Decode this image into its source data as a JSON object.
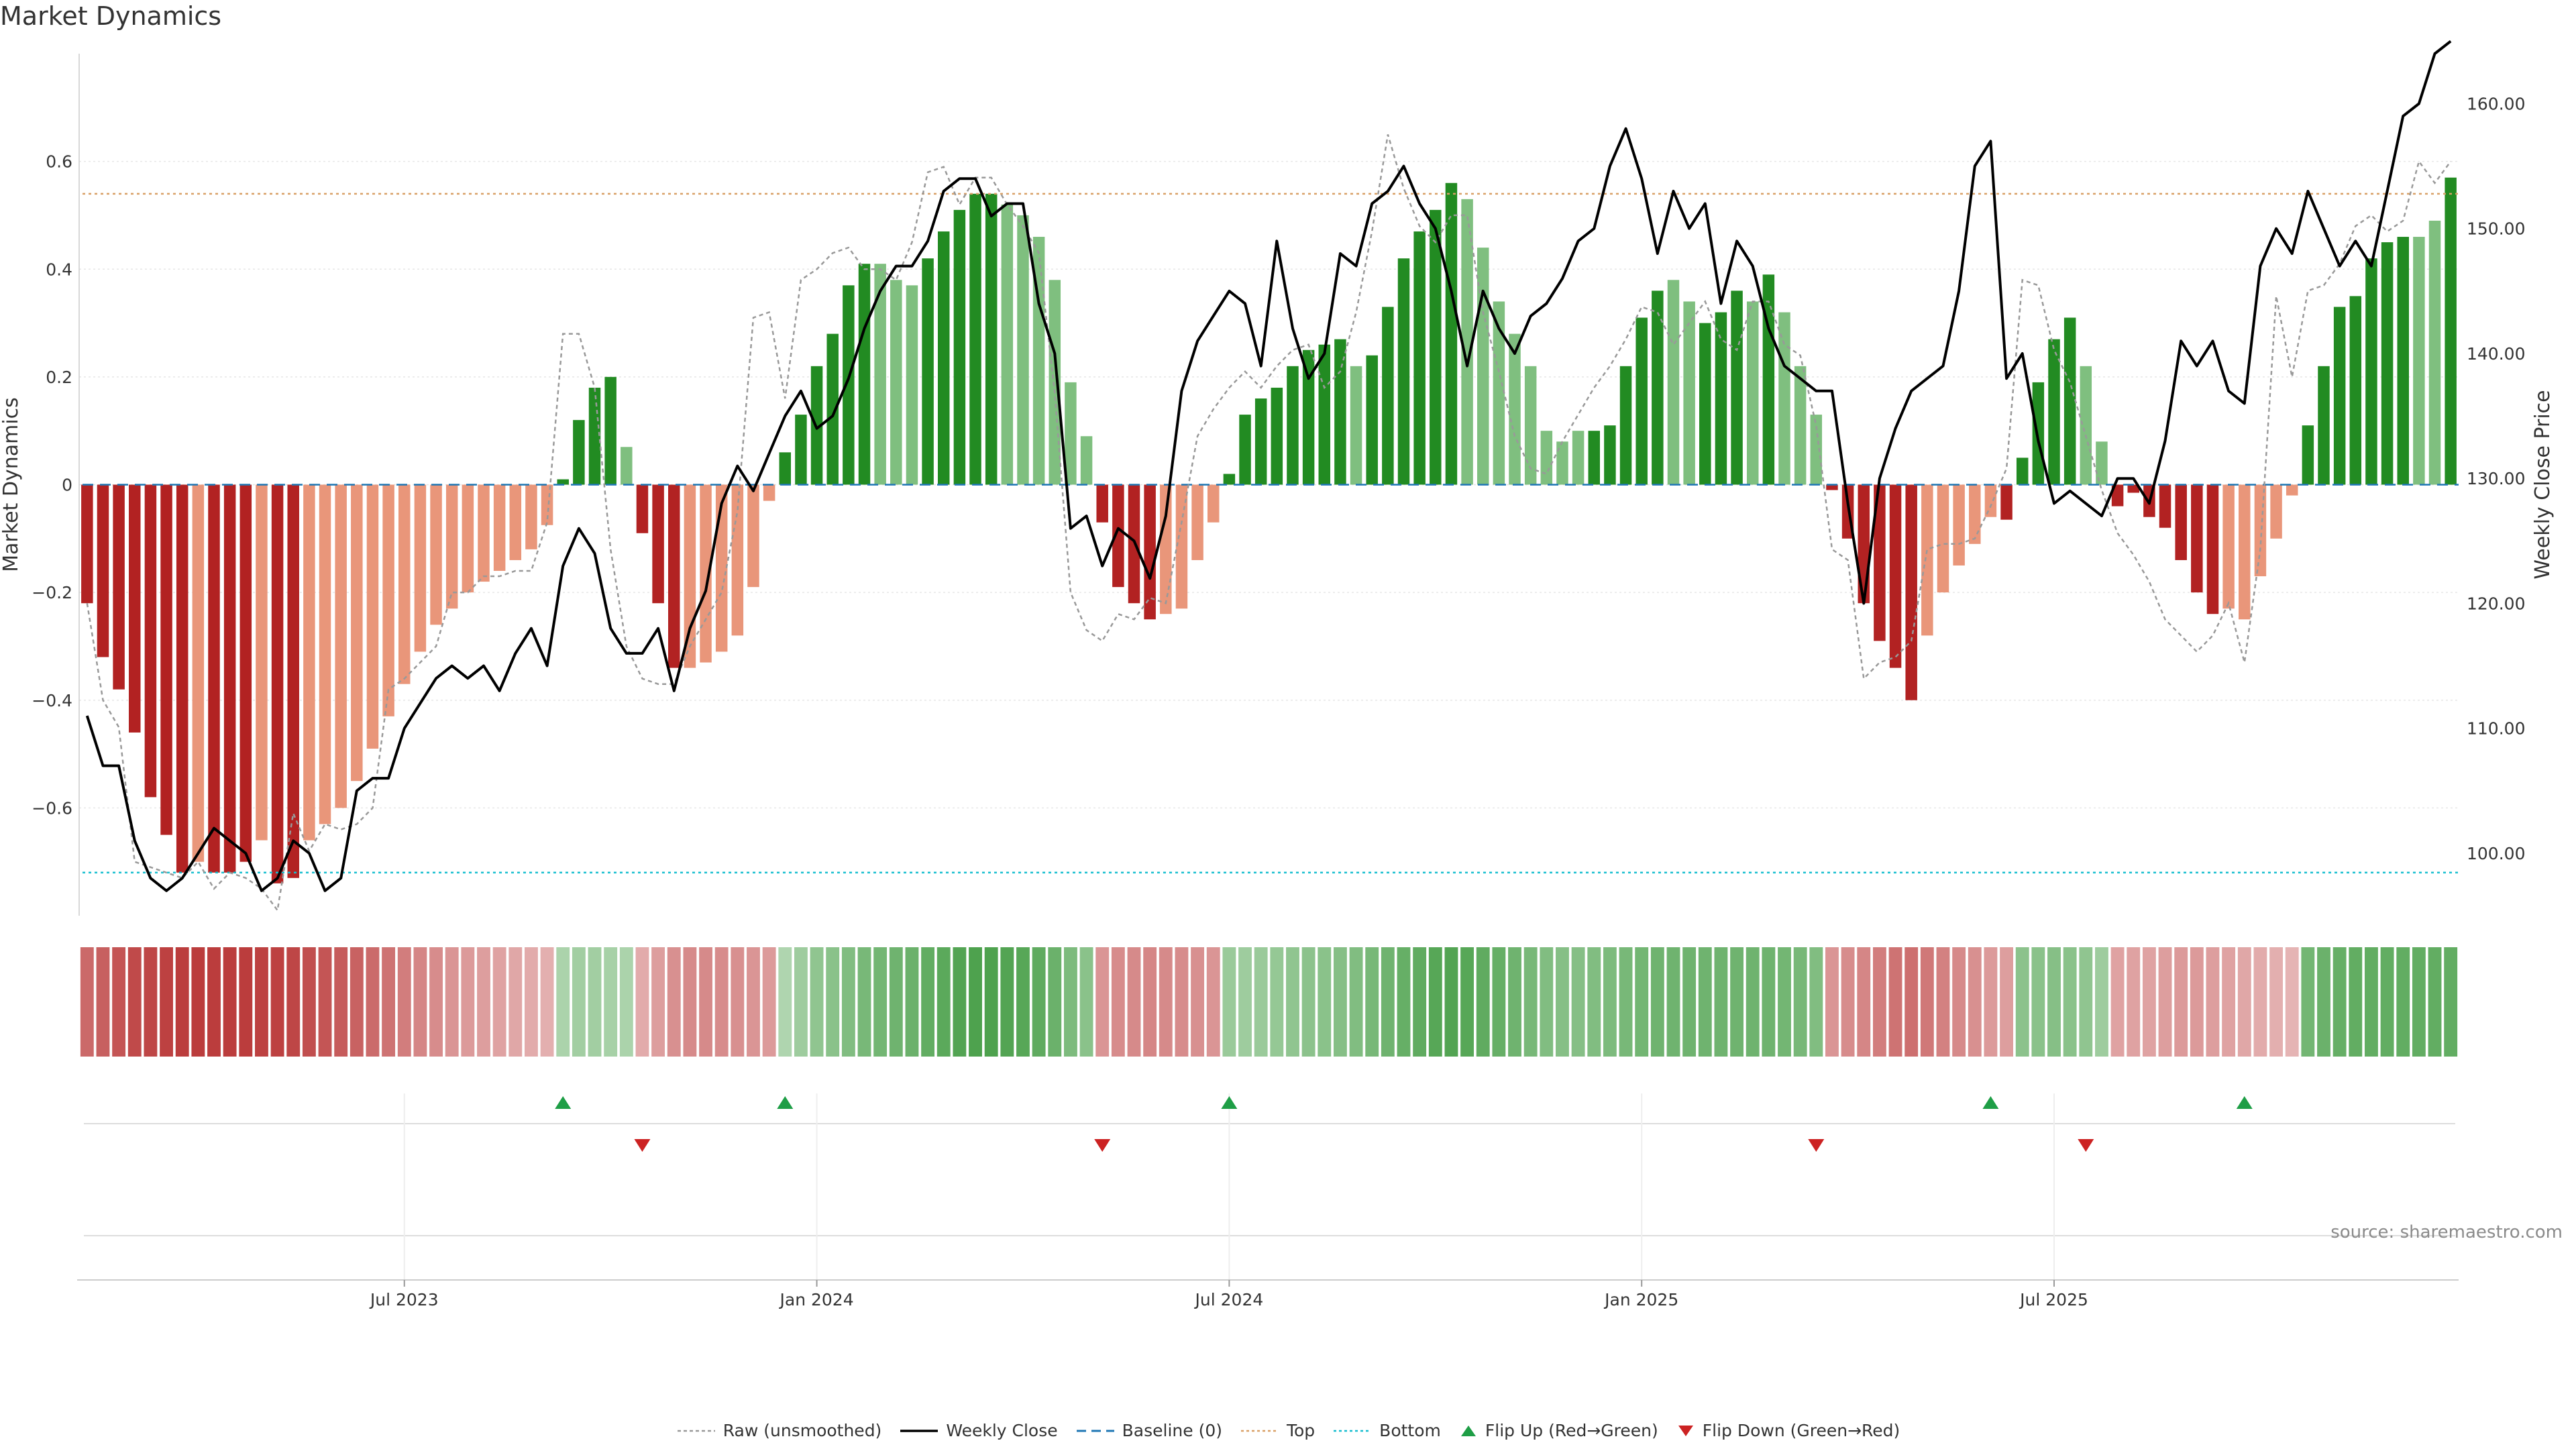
{
  "title": "Market Dynamics",
  "source": "source: sharemaestro.com",
  "colors": {
    "strong_red": "#b22222",
    "light_red": "#e9967a",
    "strong_green": "#228b22",
    "light_green": "#7fbf7f",
    "close_line": "#000000",
    "raw_line": "#999999",
    "baseline": "#1f77b4",
    "top": "#d9a066",
    "bottom": "#17becf",
    "flip_up": "#1e9e46",
    "flip_down": "#cc2222"
  },
  "legend": [
    {
      "key": "raw",
      "label": "Raw (unsmoothed)"
    },
    {
      "key": "close",
      "label": "Weekly Close"
    },
    {
      "key": "baseline",
      "label": "Baseline (0)"
    },
    {
      "key": "top",
      "label": "Top"
    },
    {
      "key": "bottom",
      "label": "Bottom"
    },
    {
      "key": "flip_up",
      "label": "Flip Up (Red→Green)"
    },
    {
      "key": "flip_down",
      "label": "Flip Down (Green→Red)"
    }
  ],
  "chart_data": {
    "type": "bar",
    "title": "Market Dynamics",
    "ylabel": "Market Dynamics",
    "y2label": "Weekly Close Price",
    "ylim": [
      -0.8,
      0.8
    ],
    "y2lim": [
      95,
      164
    ],
    "yticks": [
      {
        "v": 0.6,
        "label": "0.6"
      },
      {
        "v": 0.4,
        "label": "0.4"
      },
      {
        "v": 0.2,
        "label": "0.2"
      },
      {
        "v": 0,
        "label": "0"
      },
      {
        "v": -0.2,
        "label": "−0.2"
      },
      {
        "v": -0.4,
        "label": "−0.4"
      },
      {
        "v": -0.6,
        "label": "−0.6"
      }
    ],
    "y2ticks": [
      {
        "v": 160,
        "label": "160.00"
      },
      {
        "v": 150,
        "label": "150.00"
      },
      {
        "v": 140,
        "label": "140.00"
      },
      {
        "v": 130,
        "label": "130.00"
      },
      {
        "v": 120,
        "label": "120.00"
      },
      {
        "v": 110,
        "label": "110.00"
      },
      {
        "v": 100,
        "label": "100.00"
      }
    ],
    "xticks": [
      {
        "i": 20,
        "label": "Jul 2023"
      },
      {
        "i": 46,
        "label": "Jan 2024"
      },
      {
        "i": 72,
        "label": "Jul 2024"
      },
      {
        "i": 98,
        "label": "Jan 2025"
      },
      {
        "i": 124,
        "label": "Jul 2025"
      }
    ],
    "top": 0.54,
    "bottom": -0.72,
    "baseline": 0,
    "values": [
      -0.22,
      -0.32,
      -0.38,
      -0.46,
      -0.58,
      -0.65,
      -0.72,
      -0.7,
      -0.72,
      -0.72,
      -0.7,
      -0.66,
      -0.74,
      -0.73,
      -0.66,
      -0.63,
      -0.6,
      -0.55,
      -0.49,
      -0.43,
      -0.37,
      -0.31,
      -0.26,
      -0.23,
      -0.2,
      -0.18,
      -0.16,
      -0.14,
      -0.12,
      -0.075,
      0.01,
      0.12,
      0.18,
      0.2,
      0.07,
      -0.09,
      -0.22,
      -0.34,
      -0.34,
      -0.33,
      -0.31,
      -0.28,
      -0.19,
      -0.03,
      0.06,
      0.13,
      0.22,
      0.28,
      0.37,
      0.41,
      0.41,
      0.38,
      0.37,
      0.42,
      0.47,
      0.51,
      0.54,
      0.54,
      0.52,
      0.5,
      0.46,
      0.38,
      0.19,
      0.09,
      -0.07,
      -0.19,
      -0.22,
      -0.25,
      -0.24,
      -0.23,
      -0.14,
      -0.07,
      0.02,
      0.13,
      0.16,
      0.18,
      0.22,
      0.25,
      0.26,
      0.27,
      0.22,
      0.24,
      0.33,
      0.42,
      0.47,
      0.51,
      0.56,
      0.53,
      0.44,
      0.34,
      0.28,
      0.22,
      0.1,
      0.08,
      0.1,
      0.1,
      0.11,
      0.22,
      0.31,
      0.36,
      0.38,
      0.34,
      0.3,
      0.32,
      0.36,
      0.34,
      0.39,
      0.32,
      0.22,
      0.13,
      -0.01,
      -0.1,
      -0.22,
      -0.29,
      -0.34,
      -0.4,
      -0.28,
      -0.2,
      -0.15,
      -0.11,
      -0.06,
      -0.065,
      0.05,
      0.19,
      0.27,
      0.31,
      0.22,
      0.08,
      -0.04,
      -0.015,
      -0.06,
      -0.08,
      -0.14,
      -0.2,
      -0.24,
      -0.23,
      -0.25,
      -0.17,
      -0.1,
      -0.02,
      0.11,
      0.22,
      0.33,
      0.35,
      0.42,
      0.45,
      0.46,
      0.46,
      0.49,
      0.57
    ],
    "shade": [
      0,
      0,
      0,
      0,
      0,
      0,
      0,
      1,
      0,
      0,
      0,
      1,
      0,
      0,
      1,
      1,
      1,
      1,
      1,
      1,
      1,
      1,
      1,
      1,
      1,
      1,
      1,
      1,
      1,
      1,
      0,
      0,
      0,
      0,
      1,
      0,
      0,
      0,
      1,
      1,
      1,
      1,
      1,
      1,
      0,
      0,
      0,
      0,
      0,
      0,
      1,
      1,
      1,
      0,
      0,
      0,
      0,
      0,
      1,
      1,
      1,
      1,
      1,
      1,
      0,
      0,
      0,
      0,
      1,
      1,
      1,
      1,
      0,
      0,
      0,
      0,
      0,
      0,
      0,
      0,
      1,
      0,
      0,
      0,
      0,
      0,
      0,
      1,
      1,
      1,
      1,
      1,
      1,
      1,
      1,
      0,
      0,
      0,
      0,
      0,
      1,
      1,
      0,
      0,
      0,
      1,
      0,
      1,
      1,
      1,
      0,
      0,
      0,
      0,
      0,
      0,
      1,
      1,
      1,
      1,
      1,
      0,
      0,
      0,
      0,
      0,
      1,
      1,
      0,
      0,
      0,
      0,
      0,
      0,
      0,
      1,
      1,
      1,
      1,
      1,
      0,
      0,
      0,
      0,
      0,
      0,
      0,
      1,
      1,
      0
    ],
    "close": [
      111,
      107,
      107,
      101,
      98,
      97,
      98,
      100,
      102,
      101,
      100,
      97,
      98,
      101,
      100,
      97,
      98,
      105,
      106,
      106,
      110,
      112,
      114,
      115,
      114,
      115,
      113,
      116,
      118,
      115,
      123,
      126,
      124,
      118,
      116,
      116,
      118,
      113,
      118,
      121,
      128,
      131,
      129,
      132,
      135,
      137,
      134,
      135,
      138,
      142,
      145,
      147,
      147,
      149,
      153,
      154,
      154,
      151,
      152,
      152,
      144,
      140,
      126,
      127,
      123,
      126,
      125,
      122,
      127,
      137,
      141,
      143,
      145,
      144,
      139,
      149,
      142,
      138,
      140,
      148,
      147,
      152,
      153,
      155,
      152,
      150,
      145,
      139,
      145,
      142,
      140,
      143,
      144,
      146,
      149,
      150,
      155,
      158,
      154,
      148,
      153,
      150,
      152,
      144,
      149,
      147,
      142,
      139,
      138,
      137,
      137,
      128,
      120,
      130,
      134,
      137,
      138,
      139,
      145,
      155,
      157,
      138,
      140,
      133,
      128,
      129,
      128,
      127,
      130,
      130,
      128,
      133,
      141,
      139,
      141,
      137,
      136,
      147,
      150,
      148,
      153,
      150,
      147,
      149,
      147,
      153,
      159,
      160,
      164,
      165
    ],
    "raw": [
      -0.22,
      -0.4,
      -0.45,
      -0.7,
      -0.71,
      -0.72,
      -0.73,
      -0.7,
      -0.75,
      -0.72,
      -0.73,
      -0.75,
      -0.79,
      -0.61,
      -0.68,
      -0.63,
      -0.64,
      -0.63,
      -0.6,
      -0.38,
      -0.36,
      -0.33,
      -0.3,
      -0.2,
      -0.2,
      -0.17,
      -0.17,
      -0.16,
      -0.16,
      -0.07,
      0.28,
      0.28,
      0.18,
      -0.12,
      -0.3,
      -0.36,
      -0.37,
      -0.37,
      -0.3,
      -0.25,
      -0.2,
      -0.05,
      0.31,
      0.32,
      0.16,
      0.38,
      0.4,
      0.43,
      0.44,
      0.4,
      0.4,
      0.38,
      0.45,
      0.58,
      0.59,
      0.52,
      0.57,
      0.57,
      0.52,
      0.48,
      0.43,
      0.17,
      -0.2,
      -0.27,
      -0.29,
      -0.24,
      -0.25,
      -0.21,
      -0.22,
      -0.07,
      0.09,
      0.14,
      0.18,
      0.21,
      0.18,
      0.22,
      0.25,
      0.26,
      0.18,
      0.21,
      0.32,
      0.47,
      0.65,
      0.55,
      0.48,
      0.45,
      0.5,
      0.5,
      0.32,
      0.21,
      0.09,
      0.03,
      0.02,
      0.08,
      0.13,
      0.18,
      0.22,
      0.27,
      0.33,
      0.32,
      0.26,
      0.3,
      0.34,
      0.27,
      0.25,
      0.34,
      0.34,
      0.26,
      0.24,
      0.11,
      -0.12,
      -0.14,
      -0.36,
      -0.33,
      -0.32,
      -0.29,
      -0.12,
      -0.11,
      -0.11,
      -0.1,
      -0.04,
      0.03,
      0.38,
      0.37,
      0.25,
      0.19,
      0.09,
      -0.01,
      -0.09,
      -0.13,
      -0.18,
      -0.25,
      -0.28,
      -0.31,
      -0.28,
      -0.22,
      -0.33,
      -0.12,
      0.35,
      0.2,
      0.36,
      0.37,
      0.41,
      0.48,
      0.5,
      0.47,
      0.49,
      0.6,
      0.56,
      0.6
    ],
    "heat": [
      0.45,
      0.5,
      0.55,
      0.6,
      0.62,
      0.64,
      0.66,
      0.66,
      0.66,
      0.66,
      0.66,
      0.64,
      0.64,
      0.62,
      0.58,
      0.55,
      0.52,
      0.48,
      0.44,
      0.4,
      0.36,
      0.32,
      0.28,
      0.24,
      0.22,
      0.2,
      0.18,
      0.16,
      0.14,
      0.12,
      0.14,
      0.18,
      0.18,
      0.16,
      0.14,
      0.14,
      0.2,
      0.26,
      0.3,
      0.3,
      0.28,
      0.26,
      0.24,
      0.22,
      0.12,
      0.2,
      0.26,
      0.3,
      0.34,
      0.38,
      0.4,
      0.42,
      0.44,
      0.48,
      0.52,
      0.56,
      0.58,
      0.58,
      0.56,
      0.54,
      0.5,
      0.44,
      0.36,
      0.3,
      0.24,
      0.28,
      0.3,
      0.32,
      0.3,
      0.28,
      0.26,
      0.24,
      0.22,
      0.2,
      0.22,
      0.24,
      0.26,
      0.28,
      0.3,
      0.32,
      0.34,
      0.38,
      0.42,
      0.46,
      0.5,
      0.54,
      0.56,
      0.54,
      0.5,
      0.46,
      0.42,
      0.38,
      0.34,
      0.32,
      0.32,
      0.34,
      0.36,
      0.38,
      0.4,
      0.42,
      0.42,
      0.42,
      0.42,
      0.42,
      0.42,
      0.42,
      0.42,
      0.4,
      0.38,
      0.34,
      0.24,
      0.28,
      0.32,
      0.36,
      0.4,
      0.42,
      0.38,
      0.34,
      0.3,
      0.26,
      0.22,
      0.2,
      0.28,
      0.3,
      0.32,
      0.3,
      0.26,
      0.2,
      0.18,
      0.18,
      0.18,
      0.2,
      0.22,
      0.22,
      0.2,
      0.18,
      0.16,
      0.14,
      0.12,
      0.1,
      0.4,
      0.44,
      0.46,
      0.48,
      0.48,
      0.48,
      0.48,
      0.48,
      0.48,
      0.48
    ],
    "flips_up": [
      {
        "i": 30
      },
      {
        "i": 44
      },
      {
        "i": 72
      },
      {
        "i": 120
      },
      {
        "i": 136
      }
    ],
    "flips_down": [
      {
        "i": 35
      },
      {
        "i": 64
      },
      {
        "i": 109
      },
      {
        "i": 126
      }
    ]
  }
}
